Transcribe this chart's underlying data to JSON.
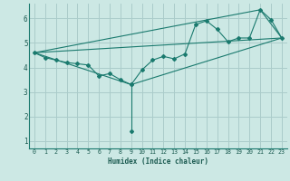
{
  "xlabel": "Humidex (Indice chaleur)",
  "background_color": "#cce8e4",
  "grid_color": "#aaccca",
  "line_color": "#1a7a6e",
  "xlim": [
    -0.5,
    23.5
  ],
  "ylim": [
    0.7,
    6.6
  ],
  "yticks": [
    1,
    2,
    3,
    4,
    5,
    6
  ],
  "xticks": [
    0,
    1,
    2,
    3,
    4,
    5,
    6,
    7,
    8,
    9,
    10,
    11,
    12,
    13,
    14,
    15,
    16,
    17,
    18,
    19,
    20,
    21,
    22,
    23
  ],
  "series_main": {
    "x": [
      0,
      1,
      2,
      3,
      4,
      5,
      6,
      7,
      8,
      9,
      10,
      11,
      12,
      13,
      14,
      15,
      16,
      17,
      18,
      19,
      20,
      21,
      22,
      23
    ],
    "y": [
      4.6,
      4.4,
      4.3,
      4.2,
      4.15,
      4.1,
      3.65,
      3.75,
      3.5,
      3.3,
      3.9,
      4.3,
      4.45,
      4.35,
      4.55,
      5.75,
      5.9,
      5.55,
      5.05,
      5.2,
      5.2,
      6.35,
      5.95,
      5.2
    ]
  },
  "series_drop": {
    "x": [
      9,
      9
    ],
    "y": [
      3.3,
      1.4
    ]
  },
  "series_lines": [
    {
      "x": [
        0,
        23
      ],
      "y": [
        4.6,
        5.2
      ]
    },
    {
      "x": [
        0,
        21,
        23
      ],
      "y": [
        4.6,
        6.35,
        5.2
      ]
    },
    {
      "x": [
        0,
        9,
        23
      ],
      "y": [
        4.6,
        3.3,
        5.2
      ]
    }
  ]
}
